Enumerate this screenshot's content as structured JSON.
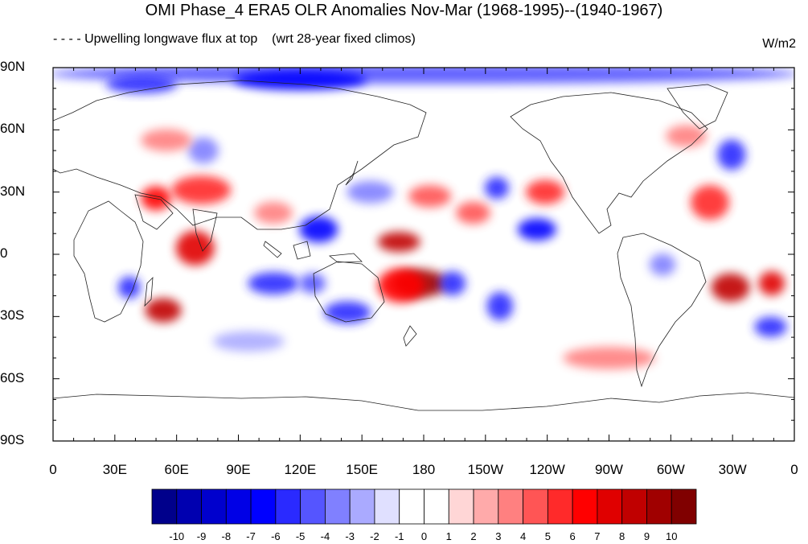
{
  "title": "OMI Phase_4 ERA5 OLR Anomalies Nov-Mar (1968-1995)--(1940-1967)",
  "subtitle": "- - - - Upwelling longwave flux at top    (wrt 28-year fixed climos)",
  "units": "W/m2",
  "map": {
    "lat_labels": [
      "90N",
      "60N",
      "30N",
      "0",
      "30S",
      "60S",
      "90S"
    ],
    "lon_labels": [
      "0",
      "30E",
      "60E",
      "90E",
      "120E",
      "150E",
      "180",
      "150W",
      "120W",
      "90W",
      "60W",
      "30W",
      "0"
    ],
    "lon_range": [
      0,
      360
    ],
    "lat_range": [
      -90,
      90
    ],
    "anomalies": [
      {
        "lon": 0,
        "lat": 87,
        "w": 360,
        "h": 5,
        "value": -5
      },
      {
        "lon": 90,
        "lat": 84,
        "w": 60,
        "h": 5,
        "value": -7
      },
      {
        "lon": 28,
        "lat": 82,
        "w": 30,
        "h": 4,
        "value": -6
      },
      {
        "lon": 60,
        "lat": 31,
        "w": 24,
        "h": 9,
        "value": 5
      },
      {
        "lon": 45,
        "lat": 27,
        "w": 10,
        "h": 7,
        "value": 6
      },
      {
        "lon": 68,
        "lat": 50,
        "w": 10,
        "h": 8,
        "value": -4
      },
      {
        "lon": 62,
        "lat": 3,
        "w": 14,
        "h": 12,
        "value": 7
      },
      {
        "lon": 34,
        "lat": -16,
        "w": 6,
        "h": 6,
        "value": -6
      },
      {
        "lon": 47,
        "lat": -27,
        "w": 13,
        "h": 7,
        "value": 8
      },
      {
        "lon": 97,
        "lat": -14,
        "w": 20,
        "h": 6,
        "value": -6
      },
      {
        "lon": 122,
        "lat": -14,
        "w": 8,
        "h": 5,
        "value": -5
      },
      {
        "lon": 122,
        "lat": 12,
        "w": 14,
        "h": 8,
        "value": -7
      },
      {
        "lon": 134,
        "lat": -28,
        "w": 18,
        "h": 6,
        "value": -6
      },
      {
        "lon": 160,
        "lat": 6,
        "w": 16,
        "h": 5,
        "value": 8
      },
      {
        "lon": 167,
        "lat": -14,
        "w": 22,
        "h": 9,
        "value": 9
      },
      {
        "lon": 190,
        "lat": -14,
        "w": 8,
        "h": 7,
        "value": -6
      },
      {
        "lon": 213,
        "lat": -25,
        "w": 8,
        "h": 9,
        "value": -6
      },
      {
        "lon": 228,
        "lat": 12,
        "w": 14,
        "h": 6,
        "value": -7
      },
      {
        "lon": 212,
        "lat": 32,
        "w": 7,
        "h": 6,
        "value": -6
      },
      {
        "lon": 232,
        "lat": 30,
        "w": 14,
        "h": 7,
        "value": 5
      },
      {
        "lon": 198,
        "lat": 20,
        "w": 12,
        "h": 6,
        "value": 4
      },
      {
        "lon": 325,
        "lat": 48,
        "w": 9,
        "h": 10,
        "value": -6
      },
      {
        "lon": 312,
        "lat": 25,
        "w": 14,
        "h": 12,
        "value": 5
      },
      {
        "lon": 322,
        "lat": -16,
        "w": 14,
        "h": 9,
        "value": 8
      },
      {
        "lon": 345,
        "lat": -14,
        "w": 8,
        "h": 7,
        "value": 7
      },
      {
        "lon": 343,
        "lat": -35,
        "w": 11,
        "h": 5,
        "value": -6
      },
      {
        "lon": 160,
        "lat": -15,
        "w": 18,
        "h": 12,
        "value": 6
      },
      {
        "lon": 145,
        "lat": 30,
        "w": 18,
        "h": 6,
        "value": -4
      },
      {
        "lon": 175,
        "lat": 28,
        "w": 16,
        "h": 6,
        "value": 4
      },
      {
        "lon": 292,
        "lat": -5,
        "w": 8,
        "h": 6,
        "value": -4
      },
      {
        "lon": 100,
        "lat": 20,
        "w": 14,
        "h": 6,
        "value": 3
      },
      {
        "lon": 45,
        "lat": 55,
        "w": 20,
        "h": 6,
        "value": 3
      },
      {
        "lon": 300,
        "lat": 57,
        "w": 15,
        "h": 6,
        "value": 3
      },
      {
        "lon": 80,
        "lat": -42,
        "w": 30,
        "h": 5,
        "value": -3
      },
      {
        "lon": 250,
        "lat": -50,
        "w": 40,
        "h": 6,
        "value": 3
      }
    ]
  },
  "colorbar": {
    "labels": [
      "-10",
      "-9",
      "-8",
      "-7",
      "-6",
      "-5",
      "-4",
      "-3",
      "-2",
      "-1",
      "0",
      "1",
      "2",
      "3",
      "4",
      "5",
      "6",
      "7",
      "8",
      "9",
      "10"
    ],
    "colors": [
      "#00008b",
      "#0000b0",
      "#0000cd",
      "#0000e6",
      "#0000ff",
      "#2a2aff",
      "#5555ff",
      "#8080ff",
      "#aaaaff",
      "#e0e0ff",
      "#ffffff",
      "#ffffff",
      "#ffd6d6",
      "#ffaaaa",
      "#ff8080",
      "#ff5555",
      "#ff2a2a",
      "#ff0000",
      "#e00000",
      "#c00000",
      "#a00000",
      "#800000"
    ]
  }
}
